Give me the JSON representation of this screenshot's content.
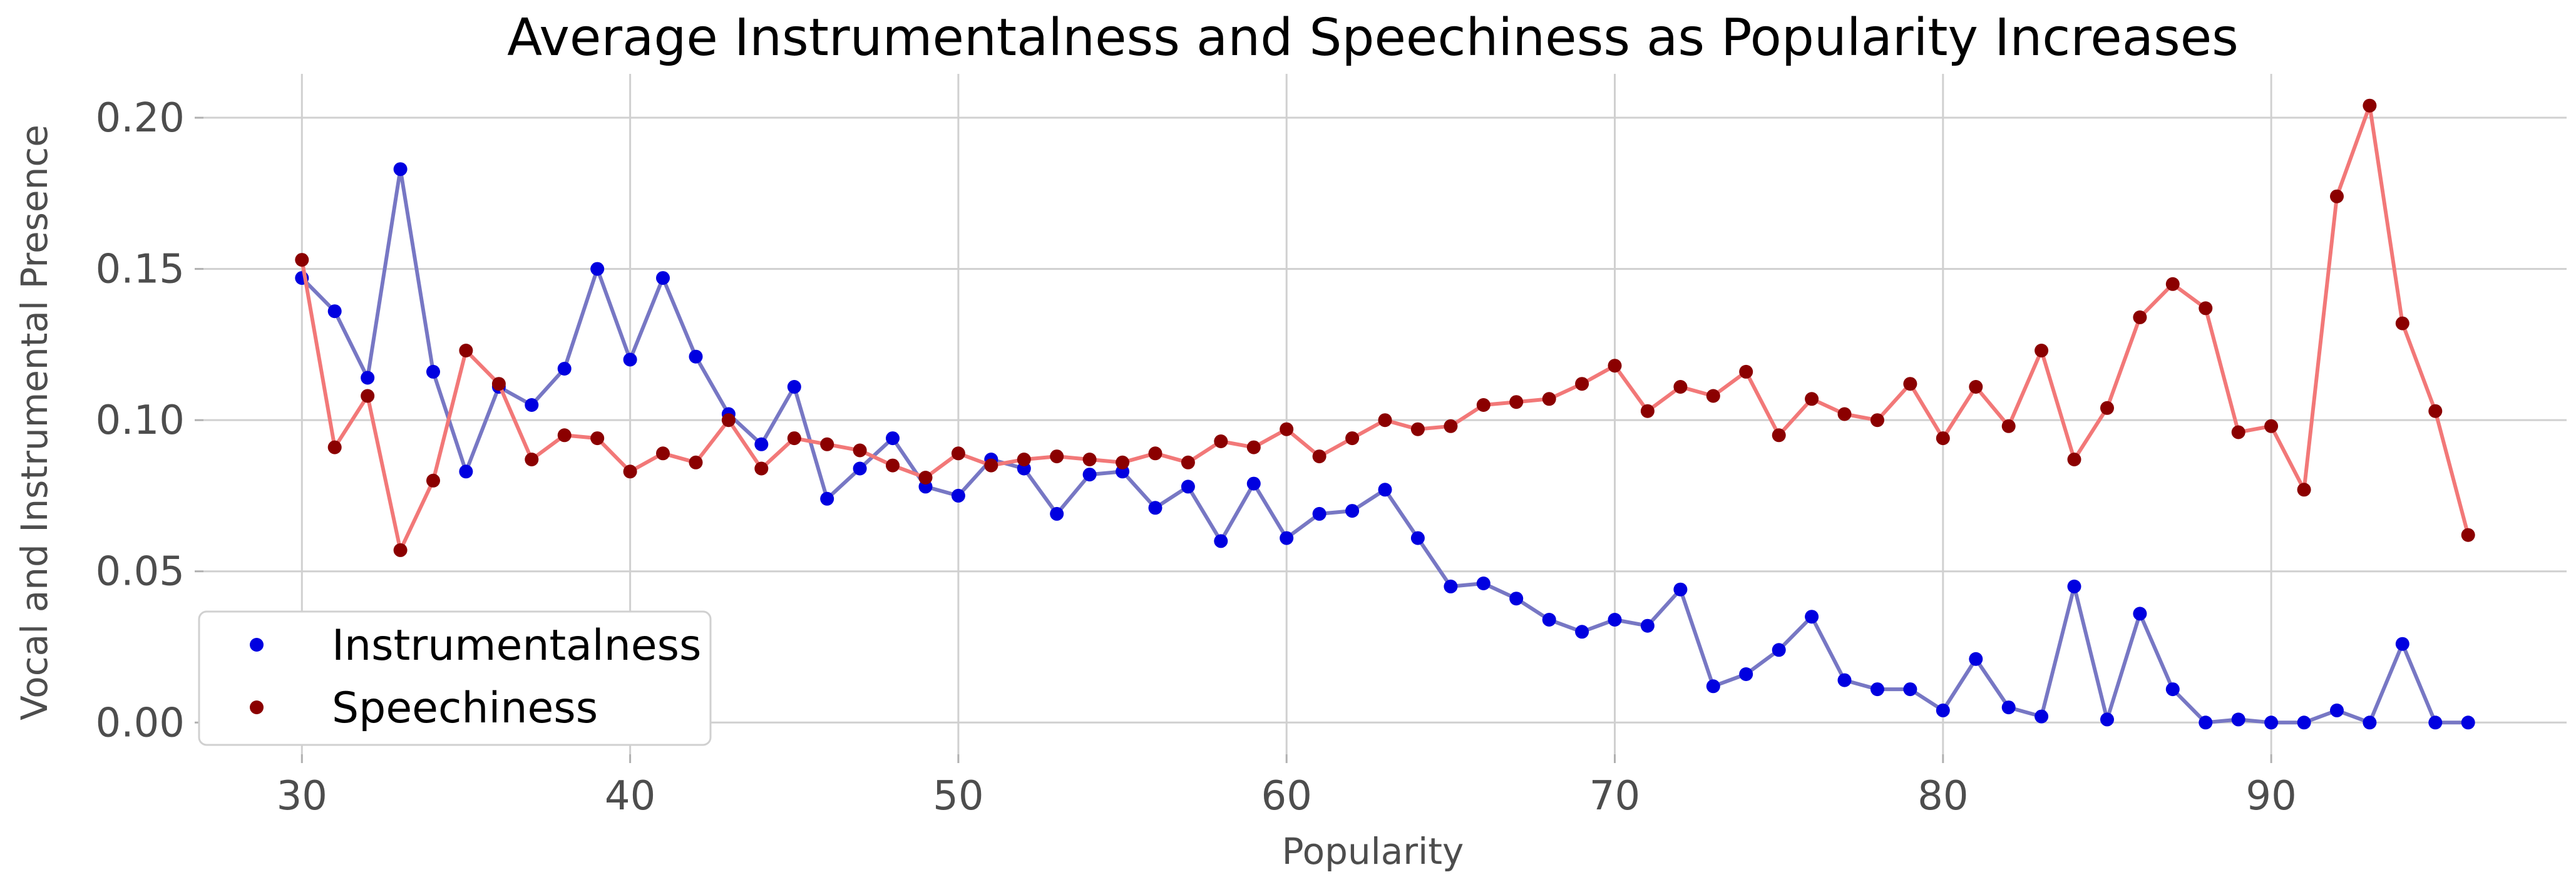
{
  "chart_data": {
    "type": "line",
    "title": "Average Instrumentalness and Speechiness as Popularity Increases",
    "xlabel": "Popularity",
    "ylabel": "Vocal and Instrumental Presence",
    "xlim": [
      27,
      99
    ],
    "ylim": [
      -0.0105,
      0.2145
    ],
    "xticks": [
      30,
      40,
      50,
      60,
      70,
      80,
      90
    ],
    "yticks": [
      0.0,
      0.05,
      0.1,
      0.15,
      0.2
    ],
    "xtick_labels": [
      "30",
      "40",
      "50",
      "60",
      "70",
      "80",
      "90"
    ],
    "ytick_labels": [
      "0.00",
      "0.05",
      "0.10",
      "0.15",
      "0.20"
    ],
    "grid": true,
    "legend_position": "lower-left",
    "x": [
      30,
      31,
      32,
      33,
      34,
      35,
      36,
      37,
      38,
      39,
      40,
      41,
      42,
      43,
      44,
      45,
      46,
      47,
      48,
      49,
      50,
      51,
      52,
      53,
      54,
      55,
      56,
      57,
      58,
      59,
      60,
      61,
      62,
      63,
      64,
      65,
      66,
      67,
      68,
      69,
      70,
      71,
      72,
      73,
      74,
      75,
      76,
      77,
      78,
      79,
      80,
      81,
      82,
      83,
      84,
      85,
      86,
      87,
      88,
      89,
      90,
      91,
      92,
      93,
      94,
      95,
      96
    ],
    "series": [
      {
        "name": "Instrumentalness",
        "point_color": "#0000e0",
        "line_color": "#7777c4",
        "values": [
          0.147,
          0.136,
          0.114,
          0.183,
          0.116,
          0.083,
          0.111,
          0.105,
          0.117,
          0.15,
          0.12,
          0.147,
          0.121,
          0.102,
          0.092,
          0.111,
          0.074,
          0.084,
          0.094,
          0.078,
          0.075,
          0.087,
          0.084,
          0.069,
          0.082,
          0.083,
          0.071,
          0.078,
          0.06,
          0.079,
          0.061,
          0.069,
          0.07,
          0.077,
          0.061,
          0.045,
          0.046,
          0.041,
          0.034,
          0.03,
          0.034,
          0.032,
          0.044,
          0.012,
          0.016,
          0.024,
          0.035,
          0.014,
          0.011,
          0.011,
          0.004,
          0.021,
          0.005,
          0.002,
          0.045,
          0.001,
          0.036,
          0.011,
          0.0,
          0.001,
          0.0,
          0.0,
          0.004,
          0.0,
          0.026,
          0.0,
          0.0
        ]
      },
      {
        "name": "Speechiness",
        "point_color": "#8b0000",
        "line_color": "#f27878",
        "values": [
          0.153,
          0.091,
          0.108,
          0.057,
          0.08,
          0.123,
          0.112,
          0.087,
          0.095,
          0.094,
          0.083,
          0.089,
          0.086,
          0.1,
          0.084,
          0.094,
          0.092,
          0.09,
          0.085,
          0.081,
          0.089,
          0.085,
          0.087,
          0.088,
          0.087,
          0.086,
          0.089,
          0.086,
          0.093,
          0.091,
          0.097,
          0.088,
          0.094,
          0.1,
          0.097,
          0.098,
          0.105,
          0.106,
          0.107,
          0.112,
          0.118,
          0.103,
          0.111,
          0.108,
          0.116,
          0.095,
          0.107,
          0.102,
          0.1,
          0.112,
          0.094,
          0.111,
          0.098,
          0.123,
          0.087,
          0.104,
          0.134,
          0.145,
          0.137,
          0.096,
          0.098,
          0.077,
          0.174,
          0.204,
          0.132,
          0.103,
          0.062
        ]
      }
    ]
  }
}
